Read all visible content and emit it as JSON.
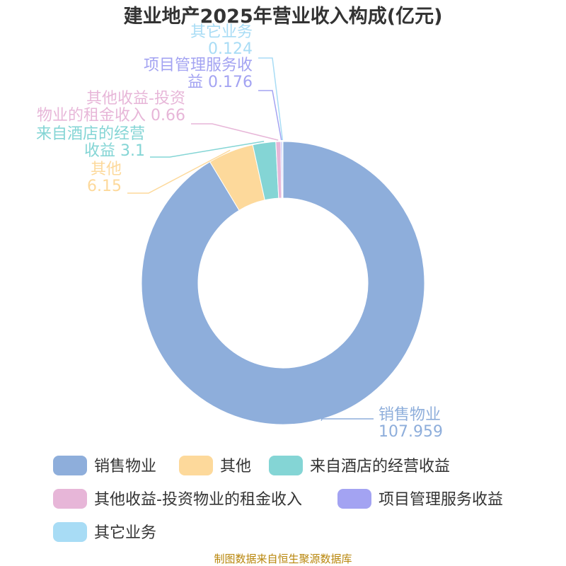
{
  "chart_data": {
    "type": "pie",
    "donut": true,
    "title": "建业地产2025年营业收入构成(亿元)",
    "unit": "亿元",
    "legend_position": "bottom",
    "series": [
      {
        "name": "销售物业",
        "value": 107.959,
        "value_label": "107.959",
        "color": "#8eaedb",
        "label_lines": [
          "销售物业",
          "107.959"
        ]
      },
      {
        "name": "其他",
        "value": 6.15,
        "value_label": "6.15",
        "color": "#fdd99b",
        "label_lines": [
          "其他",
          "6.15"
        ]
      },
      {
        "name": "来自酒店的经营收益",
        "value": 3.1,
        "value_label": "3.1",
        "color": "#84d5d5",
        "label_lines": [
          "来自酒店的经营",
          "收益 3.1"
        ]
      },
      {
        "name": "其他收益-投资物业的租金收入",
        "value": 0.66,
        "value_label": "0.66",
        "color": "#e7b6d8",
        "label_lines": [
          "其他收益-投资",
          "物业的租金收入 0.66"
        ]
      },
      {
        "name": "项目管理服务收益",
        "value": 0.176,
        "value_label": "0.176",
        "color": "#a3a3f2",
        "label_lines": [
          "项目管理服务收",
          "益 0.176"
        ]
      },
      {
        "name": "其它业务",
        "value": 0.124,
        "value_label": "0.124",
        "color": "#a8dcf5",
        "label_lines": [
          "其它业务",
          "0.124"
        ]
      }
    ]
  },
  "source": "制图数据来自恒生聚源数据库"
}
